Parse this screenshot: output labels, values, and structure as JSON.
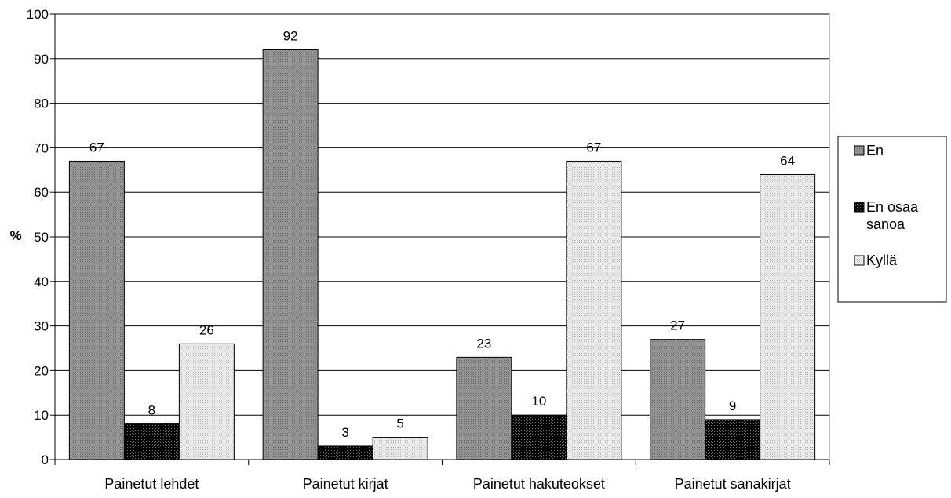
{
  "chart_data": {
    "type": "bar",
    "title": "",
    "xlabel": "",
    "ylabel": "%",
    "ylim": [
      0,
      100
    ],
    "yticks": [
      0,
      10,
      20,
      30,
      40,
      50,
      60,
      70,
      80,
      90,
      100
    ],
    "categories": [
      "Painetut lehdet",
      "Painetut kirjat",
      "Painetut hakuteokset",
      "Painetut sanakirjat"
    ],
    "series": [
      {
        "name": "En",
        "values": [
          67,
          92,
          23,
          27
        ],
        "color": "#888888",
        "pattern": "dense-gray"
      },
      {
        "name": "En osaa sanoa",
        "values": [
          8,
          3,
          10,
          9
        ],
        "color": "#111111",
        "pattern": "black-dots"
      },
      {
        "name": "Kyllä",
        "values": [
          26,
          5,
          67,
          64
        ],
        "color": "#dddddd",
        "pattern": "light-dots"
      }
    ],
    "grid": true,
    "legend_position": "right",
    "data_labels": true
  }
}
